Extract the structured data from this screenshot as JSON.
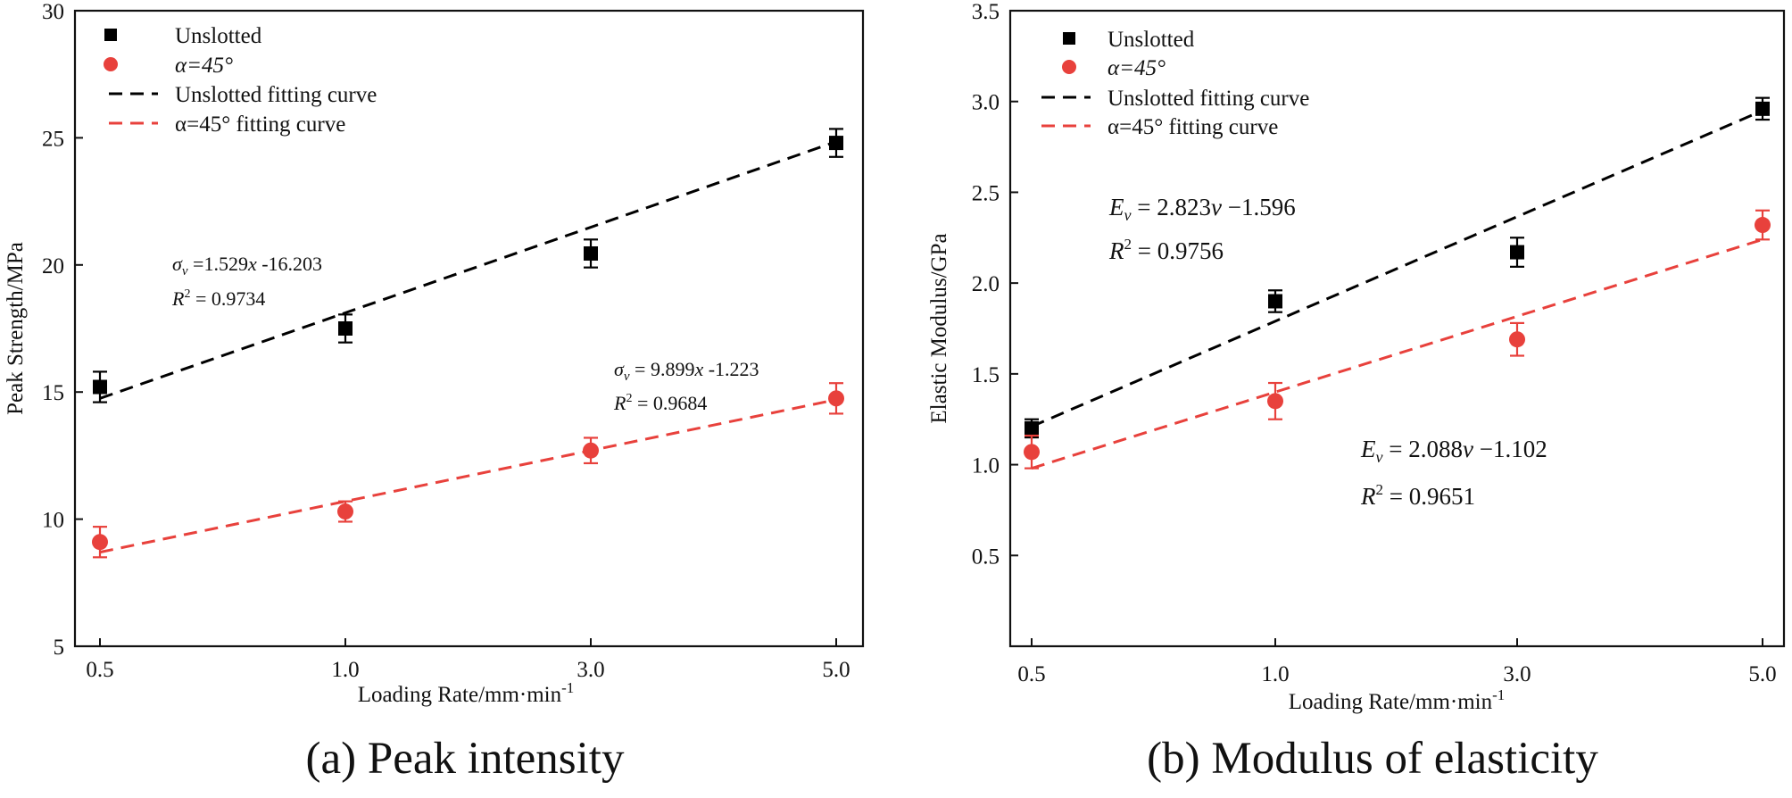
{
  "chart_data": [
    {
      "id": "a",
      "type": "scatter",
      "caption": "(a) Peak intensity",
      "xlabel": "Loading Rate/mm·min",
      "xlabel_sup": "-1",
      "ylabel": "Peak Strength/MPa",
      "categories": [
        "0.5",
        "1.0",
        "3.0",
        "5.0"
      ],
      "ylim": [
        5,
        30
      ],
      "yticks": [
        5,
        10,
        15,
        20,
        25,
        30
      ],
      "ytick_labels": [
        "5",
        "10",
        "15",
        "20",
        "25",
        "30"
      ],
      "grid": false,
      "legend_position": "top-left",
      "series": [
        {
          "name": "Unslotted",
          "marker": "square",
          "color": "#000000",
          "values": [
            15.2,
            17.5,
            20.45,
            24.8
          ],
          "errors": [
            0.6,
            0.55,
            0.55,
            0.55
          ]
        },
        {
          "name": "α=45°",
          "marker": "circle",
          "color": "#e8413c",
          "values": [
            9.1,
            10.3,
            12.7,
            14.75
          ],
          "errors": [
            0.6,
            0.4,
            0.5,
            0.6
          ]
        }
      ],
      "fits": [
        {
          "name": "Unslotted fitting curve",
          "color": "#000000",
          "start": 14.75,
          "end": 24.85
        },
        {
          "name": "α=45° fitting curve",
          "color": "#e8413c",
          "start": 8.7,
          "end": 14.7
        }
      ],
      "annotations": [
        {
          "sym": "σ",
          "sub": "v",
          "rest": " =1.529",
          "var": "x",
          "tail": " -16.203",
          "r2": " = 0.9734",
          "size": "small"
        },
        {
          "sym": "σ",
          "sub": "v",
          "rest": " = 9.899",
          "var": "x",
          "tail": " -1.223",
          "r2": " = 0.9684",
          "size": "small"
        }
      ]
    },
    {
      "id": "b",
      "type": "scatter",
      "caption": "(b) Modulus of elasticity",
      "xlabel": "Loading Rate/mm·min",
      "xlabel_sup": "-1",
      "ylabel": "Elastic Modulus/GPa",
      "categories": [
        "0.5",
        "1.0",
        "3.0",
        "5.0"
      ],
      "ylim": [
        0,
        3.5
      ],
      "yticks": [
        0.5,
        1.0,
        1.5,
        2.0,
        2.5,
        3.0,
        3.5
      ],
      "ytick_labels": [
        "0.5",
        "1.0",
        "1.5",
        "2.0",
        "2.5",
        "3.0",
        "3.5"
      ],
      "grid": false,
      "legend_position": "top-left",
      "series": [
        {
          "name": "Unslotted",
          "marker": "square",
          "color": "#000000",
          "values": [
            1.2,
            1.9,
            2.17,
            2.96
          ],
          "errors": [
            0.05,
            0.06,
            0.08,
            0.06
          ]
        },
        {
          "name": "α=45°",
          "marker": "circle",
          "color": "#e8413c",
          "values": [
            1.07,
            1.35,
            1.69,
            2.32
          ],
          "errors": [
            0.09,
            0.1,
            0.09,
            0.08
          ]
        }
      ],
      "fits": [
        {
          "name": "Unslotted fitting curve",
          "color": "#000000",
          "start": 1.21,
          "end": 2.95
        },
        {
          "name": "α=45° fitting curve",
          "color": "#e8413c",
          "start": 0.98,
          "end": 2.24
        }
      ],
      "annotations": [
        {
          "sym": "E",
          "sub": "v",
          "rest": " = 2.823",
          "var": "v",
          "tail": " −1.596",
          "r2": " = 0.9756",
          "size": "big"
        },
        {
          "sym": "E",
          "sub": "v",
          "rest": " = 2.088",
          "var": "v",
          "tail": " −1.102",
          "r2": " = 0.9651",
          "size": "big"
        }
      ]
    }
  ]
}
